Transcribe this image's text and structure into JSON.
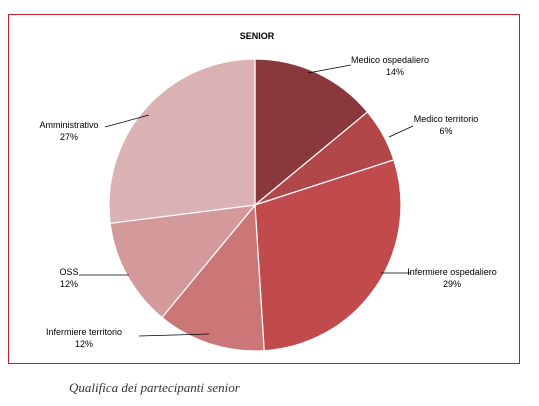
{
  "chart_data": {
    "type": "pie",
    "title": "SENIOR",
    "categories": [
      "Medico ospedaliero",
      "Medico territorio",
      "Infermiere ospedaliero",
      "Infermiere territorio",
      "OSS",
      "Amministrativo"
    ],
    "values": [
      14,
      6,
      29,
      12,
      12,
      27
    ],
    "value_labels": [
      "14%",
      "6%",
      "29%",
      "12%",
      "12%",
      "27%"
    ],
    "colors": [
      "#8a383b",
      "#b2474a",
      "#c04a4c",
      "#cb7777",
      "#d4999a",
      "#dab2b4"
    ],
    "start_angle": "12 o'clock",
    "direction": "clockwise",
    "legend": "none"
  },
  "caption": "Qualifica dei partecipanti senior"
}
